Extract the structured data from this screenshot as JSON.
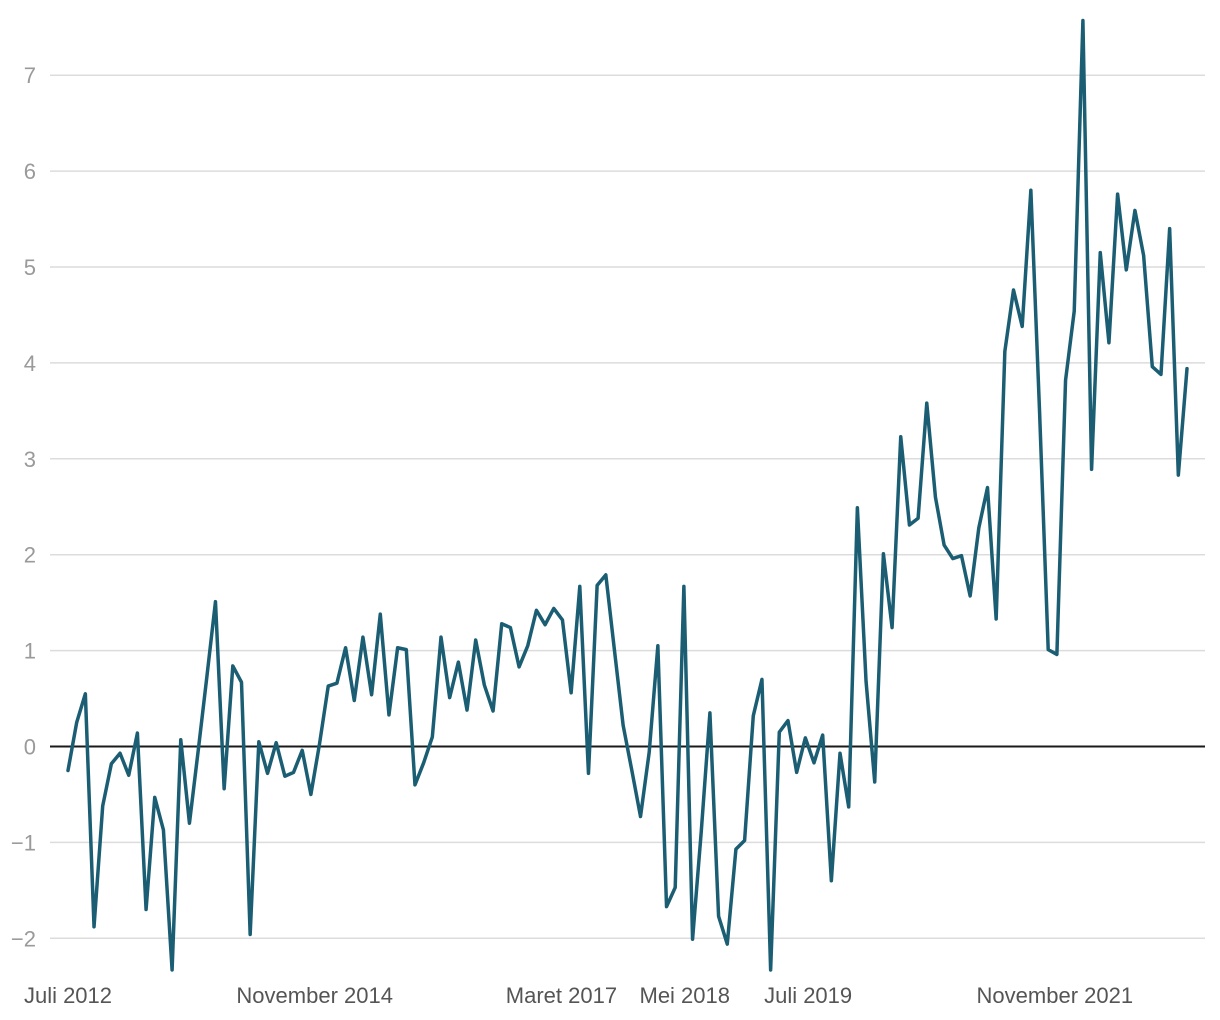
{
  "chart_data": {
    "type": "line",
    "x_labels": [
      "Juli 2012",
      "November 2014",
      "Maret 2017",
      "Mei 2018",
      "Juli 2019",
      "November 2021"
    ],
    "x_label_positions": [
      "2012-07",
      "2014-11",
      "2017-03",
      "2018-05",
      "2019-07",
      "2021-11"
    ],
    "x_start": "2012-07",
    "x_end": "2023-02",
    "y_ticks": [
      -2,
      -1,
      0,
      1,
      2,
      3,
      4,
      5,
      6,
      7
    ],
    "ylim": [
      -2.4,
      7.6
    ],
    "grid": true,
    "zero_line": true,
    "series": [
      {
        "color": "#1b5e73",
        "values": [
          -0.25,
          0.25,
          0.55,
          -1.88,
          -0.62,
          -0.18,
          -0.07,
          -0.3,
          0.14,
          -1.7,
          -0.53,
          -0.87,
          -2.33,
          0.07,
          -0.8,
          -0.05,
          0.72,
          1.51,
          -0.44,
          0.84,
          0.67,
          -1.96,
          0.05,
          -0.28,
          0.04,
          -0.31,
          -0.27,
          -0.04,
          -0.5,
          0.03,
          0.63,
          0.66,
          1.03,
          0.48,
          1.14,
          0.54,
          1.38,
          0.33,
          1.03,
          1.01,
          -0.4,
          -0.17,
          0.1,
          1.14,
          0.51,
          0.88,
          0.38,
          1.11,
          0.64,
          0.37,
          1.28,
          1.24,
          0.83,
          1.05,
          1.42,
          1.27,
          1.44,
          1.32,
          0.56,
          1.67,
          -0.28,
          1.68,
          1.79,
          1.0,
          0.22,
          -0.25,
          -0.73,
          -0.06,
          1.05,
          -1.67,
          -1.47,
          1.67,
          -2.01,
          -0.89,
          0.35,
          -1.77,
          -2.06,
          -1.07,
          -0.98,
          0.32,
          0.7,
          -2.33,
          0.15,
          0.27,
          -0.27,
          0.09,
          -0.17,
          0.12,
          -1.4,
          -0.07,
          -0.63,
          2.49,
          0.68,
          -0.37,
          2.01,
          1.24,
          3.23,
          2.31,
          2.38,
          3.58,
          2.6,
          2.1,
          1.96,
          1.99,
          1.57,
          2.28,
          2.7,
          1.33,
          4.12,
          4.76,
          4.38,
          5.8,
          3.5,
          1.01,
          0.96,
          3.82,
          4.54,
          7.57,
          2.89,
          5.15,
          4.21,
          5.76,
          4.97,
          5.59,
          5.12,
          3.96,
          3.88,
          5.4,
          2.83,
          3.94
        ]
      }
    ]
  }
}
